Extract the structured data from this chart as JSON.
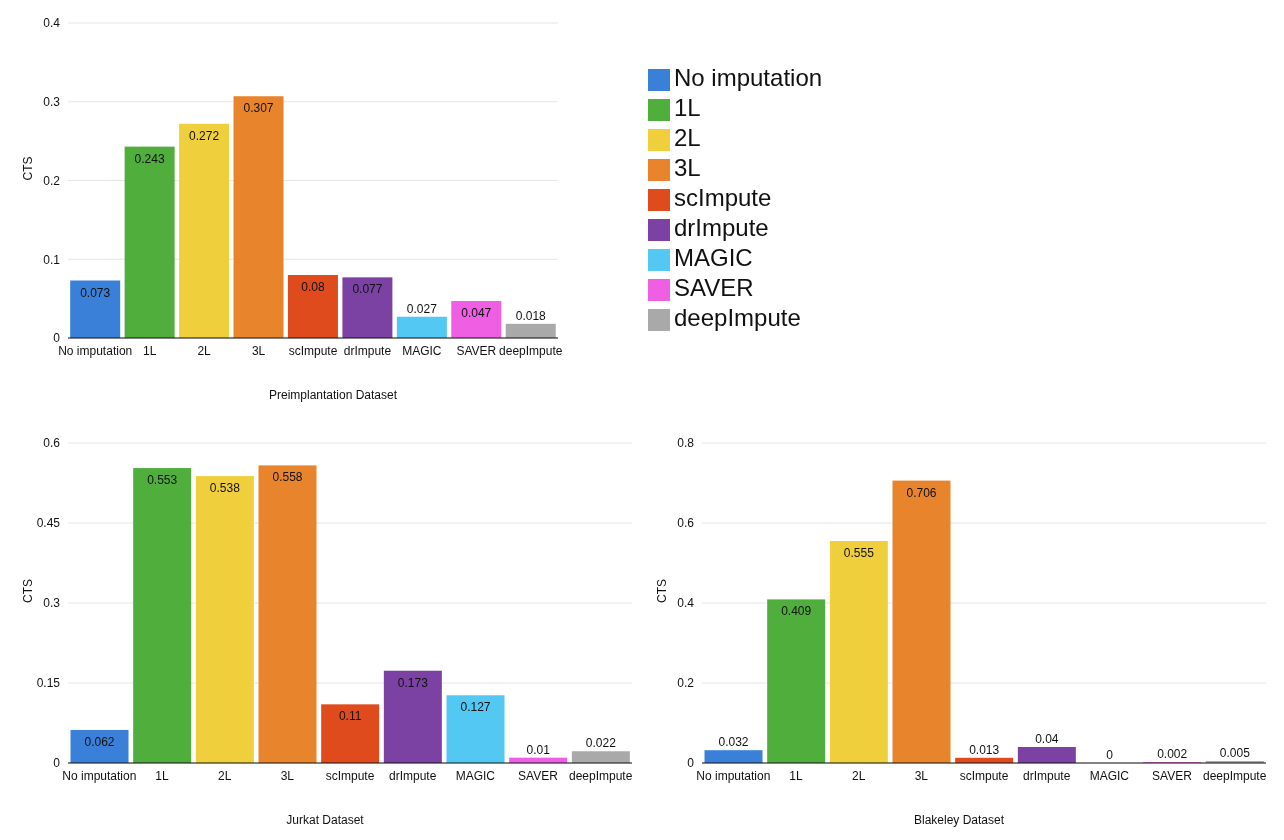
{
  "chart_data": [
    {
      "type": "bar",
      "xlabel": "Preimplantation Dataset",
      "ylabel": "CTS",
      "categories": [
        "No imputation",
        "1L",
        "2L",
        "3L",
        "scImpute",
        "drImpute",
        "MAGIC",
        "SAVER",
        "deepImpute"
      ],
      "stacked": true,
      "series": [
        {
          "name": "No imputation",
          "color": "#3a80d8",
          "values": [
            0.073,
            null,
            null,
            null,
            null,
            null,
            null,
            null,
            null
          ]
        },
        {
          "name": "1L",
          "color": "#4fae3c",
          "values": [
            null,
            0.243,
            null,
            null,
            null,
            null,
            null,
            null,
            null
          ]
        },
        {
          "name": "2L",
          "color": "#f0cf3c",
          "values": [
            null,
            null,
            0.272,
            null,
            null,
            null,
            null,
            null,
            null
          ]
        },
        {
          "name": "3L",
          "color": "#e8852c",
          "values": [
            null,
            null,
            null,
            0.307,
            null,
            null,
            null,
            null,
            null
          ]
        },
        {
          "name": "scImpute",
          "color": "#e04b1e",
          "values": [
            null,
            null,
            null,
            null,
            0.08,
            null,
            null,
            null,
            null
          ]
        },
        {
          "name": "drImpute",
          "color": "#7b41a3",
          "values": [
            null,
            null,
            null,
            null,
            null,
            0.077,
            null,
            null,
            null
          ]
        },
        {
          "name": "MAGIC",
          "color": "#52c8f2",
          "values": [
            null,
            null,
            null,
            null,
            null,
            null,
            0.027,
            null,
            null
          ]
        },
        {
          "name": "SAVER",
          "color": "#ef5fe3",
          "values": [
            null,
            null,
            null,
            null,
            null,
            null,
            null,
            0.047,
            null
          ]
        },
        {
          "name": "deepImpute",
          "color": "#a9a9a9",
          "values": [
            null,
            null,
            null,
            null,
            null,
            null,
            null,
            null,
            0.018
          ]
        }
      ],
      "ylim": [
        0,
        0.4
      ],
      "yticks": [
        0,
        0.1,
        0.2,
        0.3,
        0.4
      ],
      "grid": "y",
      "data_labels": true,
      "legend": "right"
    },
    {
      "type": "bar",
      "xlabel": "Jurkat Dataset",
      "ylabel": "CTS",
      "categories": [
        "No imputation",
        "1L",
        "2L",
        "3L",
        "scImpute",
        "drImpute",
        "MAGIC",
        "SAVER",
        "deepImpute"
      ],
      "values": [
        0.062,
        0.553,
        0.538,
        0.558,
        0.11,
        0.173,
        0.127,
        0.01,
        0.022
      ],
      "colors": [
        "#3a80d8",
        "#4fae3c",
        "#f0cf3c",
        "#e8852c",
        "#e04b1e",
        "#7b41a3",
        "#52c8f2",
        "#ef5fe3",
        "#a9a9a9"
      ],
      "ylim": [
        0,
        0.6
      ],
      "yticks": [
        0,
        0.15,
        0.3,
        0.45,
        0.6
      ],
      "grid": "y",
      "data_labels": true
    },
    {
      "type": "bar",
      "xlabel": "Blakeley Dataset",
      "ylabel": "CTS",
      "categories": [
        "No imputation",
        "1L",
        "2L",
        "3L",
        "scImpute",
        "drImpute",
        "MAGIC",
        "SAVER",
        "deepImpute"
      ],
      "values": [
        0.032,
        0.409,
        0.555,
        0.706,
        0.013,
        0.04,
        0,
        0.002,
        0.005
      ],
      "colors": [
        "#3a80d8",
        "#4fae3c",
        "#f0cf3c",
        "#e8852c",
        "#e04b1e",
        "#7b41a3",
        "#52c8f2",
        "#ef5fe3",
        "#a9a9a9"
      ],
      "ylim": [
        0,
        0.8
      ],
      "yticks": [
        0,
        0.2,
        0.4,
        0.6,
        0.8
      ],
      "grid": "y",
      "data_labels": true
    }
  ]
}
